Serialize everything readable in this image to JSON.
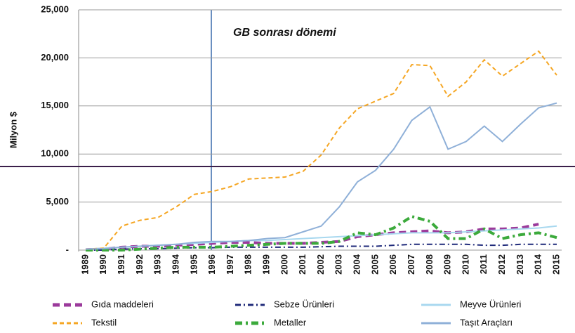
{
  "chart_data": {
    "type": "line",
    "annotation": "GB sonrası dönemi",
    "y_label": "Milyon $",
    "categories": [
      "1989",
      "1990",
      "1991",
      "1992",
      "1993",
      "1994",
      "1995",
      "1996",
      "1997",
      "1998",
      "1999",
      "2000",
      "2001",
      "2002",
      "2003",
      "2004",
      "2005",
      "2006",
      "2007",
      "2008",
      "2009",
      "2010",
      "2011",
      "2012",
      "2013",
      "2014",
      "2015"
    ],
    "ylim": [
      0,
      25000
    ],
    "yticks": [
      {
        "value": 0,
        "label": "-"
      },
      {
        "value": 5000,
        "label": "5,000"
      },
      {
        "value": 10000,
        "label": "10,000"
      },
      {
        "value": 15000,
        "label": "15,000"
      },
      {
        "value": 20000,
        "label": "20,000"
      },
      {
        "value": 25000,
        "label": "25,000"
      }
    ],
    "grid": true,
    "series": [
      {
        "name": "Gıda maddeleri",
        "color": "#9b3a9b",
        "style": "heavy-dashed",
        "values": [
          50,
          100,
          300,
          400,
          400,
          500,
          600,
          700,
          800,
          800,
          700,
          700,
          700,
          800,
          900,
          1400,
          1600,
          1800,
          1900,
          2000,
          1800,
          1900,
          2200,
          2200,
          2300,
          2700,
          null
        ]
      },
      {
        "name": "Sebze Ürünleri",
        "color": "#1f2a7a",
        "style": "dashdot",
        "values": [
          0,
          0,
          100,
          150,
          150,
          200,
          250,
          250,
          300,
          300,
          300,
          300,
          300,
          350,
          400,
          400,
          400,
          500,
          600,
          600,
          600,
          600,
          500,
          500,
          600,
          600,
          600
        ]
      },
      {
        "name": "Meyve Ürünleri",
        "color": "#a8d8ef",
        "style": "solid",
        "values": [
          100,
          200,
          300,
          400,
          500,
          600,
          700,
          800,
          900,
          1000,
          1000,
          1100,
          1200,
          1300,
          1400,
          1500,
          1600,
          1700,
          1800,
          1800,
          1800,
          1900,
          2000,
          2100,
          2200,
          2300,
          2500
        ]
      },
      {
        "name": "Tekstil",
        "color": "#f5a623",
        "style": "dashed",
        "values": [
          100,
          200,
          2500,
          3100,
          3400,
          4500,
          5800,
          6100,
          6600,
          7400,
          7500,
          7600,
          8200,
          9900,
          12700,
          14700,
          15500,
          16300,
          19300,
          19200,
          16000,
          17500,
          19800,
          18100,
          19400,
          20700,
          18200
        ]
      },
      {
        "name": "Metaller",
        "color": "#3caa3c",
        "style": "heavy-dashdot",
        "values": [
          0,
          0,
          0,
          100,
          200,
          300,
          300,
          300,
          400,
          500,
          600,
          700,
          700,
          700,
          900,
          1800,
          1600,
          2300,
          3500,
          3000,
          1200,
          1200,
          2200,
          1200,
          1600,
          1800,
          1300
        ]
      },
      {
        "name": "Taşıt Araçları",
        "color": "#8fb0d8",
        "style": "solid",
        "values": [
          100,
          150,
          300,
          400,
          500,
          600,
          800,
          900,
          900,
          1000,
          1200,
          1300,
          1900,
          2500,
          4500,
          7100,
          8300,
          10500,
          13500,
          14900,
          10500,
          11300,
          12900,
          11300,
          13100,
          14800,
          15300
        ]
      }
    ]
  }
}
